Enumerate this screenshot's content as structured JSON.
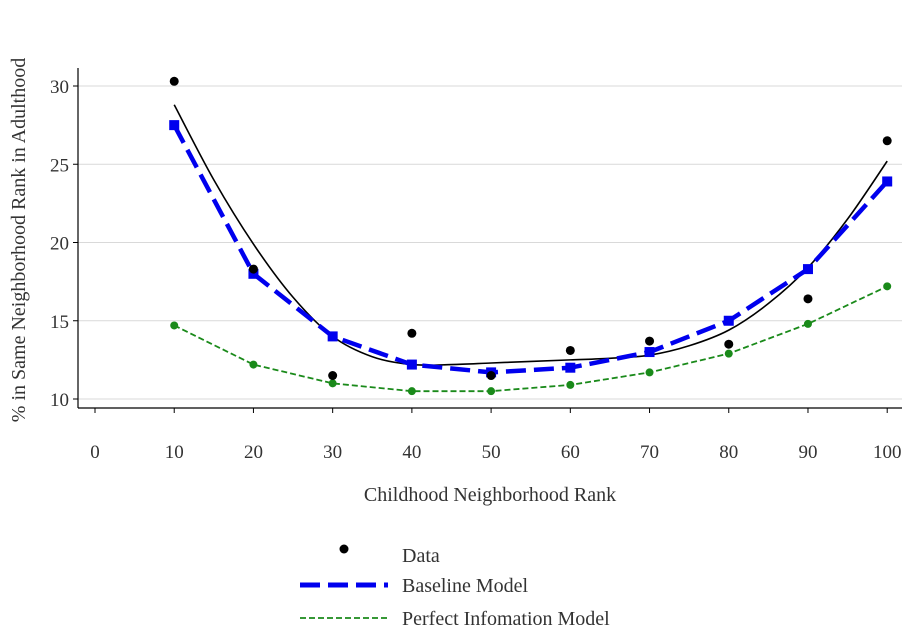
{
  "chart_data": {
    "type": "line",
    "xlabel": "Childhood Neighborhood Rank",
    "ylabel": "% in Same Neighborhood Rank in Adulthood",
    "xlim": [
      0,
      100
    ],
    "ylim": [
      10,
      31
    ],
    "x_ticks": [
      0,
      10,
      20,
      30,
      40,
      50,
      60,
      70,
      80,
      90,
      100
    ],
    "y_ticks": [
      10,
      15,
      20,
      25,
      30
    ],
    "grid": "horizontal",
    "legend_position": "bottom",
    "x": [
      10,
      20,
      30,
      40,
      50,
      60,
      70,
      80,
      90,
      100
    ],
    "series": [
      {
        "name": "Data",
        "style": "points",
        "color": "#000000",
        "values": [
          30.3,
          18.3,
          11.5,
          14.2,
          11.5,
          13.1,
          13.7,
          13.5,
          16.4,
          26.5
        ],
        "fit": {
          "x": [
            10,
            15,
            20,
            25,
            30,
            35,
            40,
            45,
            50,
            55,
            60,
            65,
            70,
            75,
            80,
            85,
            90,
            95,
            100
          ],
          "y": [
            28.8,
            24.0,
            19.9,
            16.5,
            14.0,
            12.7,
            12.2,
            12.2,
            12.3,
            12.4,
            12.5,
            12.6,
            12.8,
            13.4,
            14.4,
            16.1,
            18.4,
            21.5,
            25.2
          ]
        }
      },
      {
        "name": "Baseline Model",
        "style": "dashed-line-squares",
        "color": "#0000ee",
        "values": [
          27.5,
          18.0,
          14.0,
          12.2,
          11.7,
          12.0,
          13.0,
          15.0,
          18.3,
          23.9
        ]
      },
      {
        "name": "Perfect Infomation Model",
        "style": "dashed-line-points",
        "color": "#1a8a1a",
        "values": [
          14.7,
          12.2,
          11.0,
          10.5,
          10.5,
          10.9,
          11.7,
          12.9,
          14.8,
          17.2
        ]
      }
    ]
  }
}
